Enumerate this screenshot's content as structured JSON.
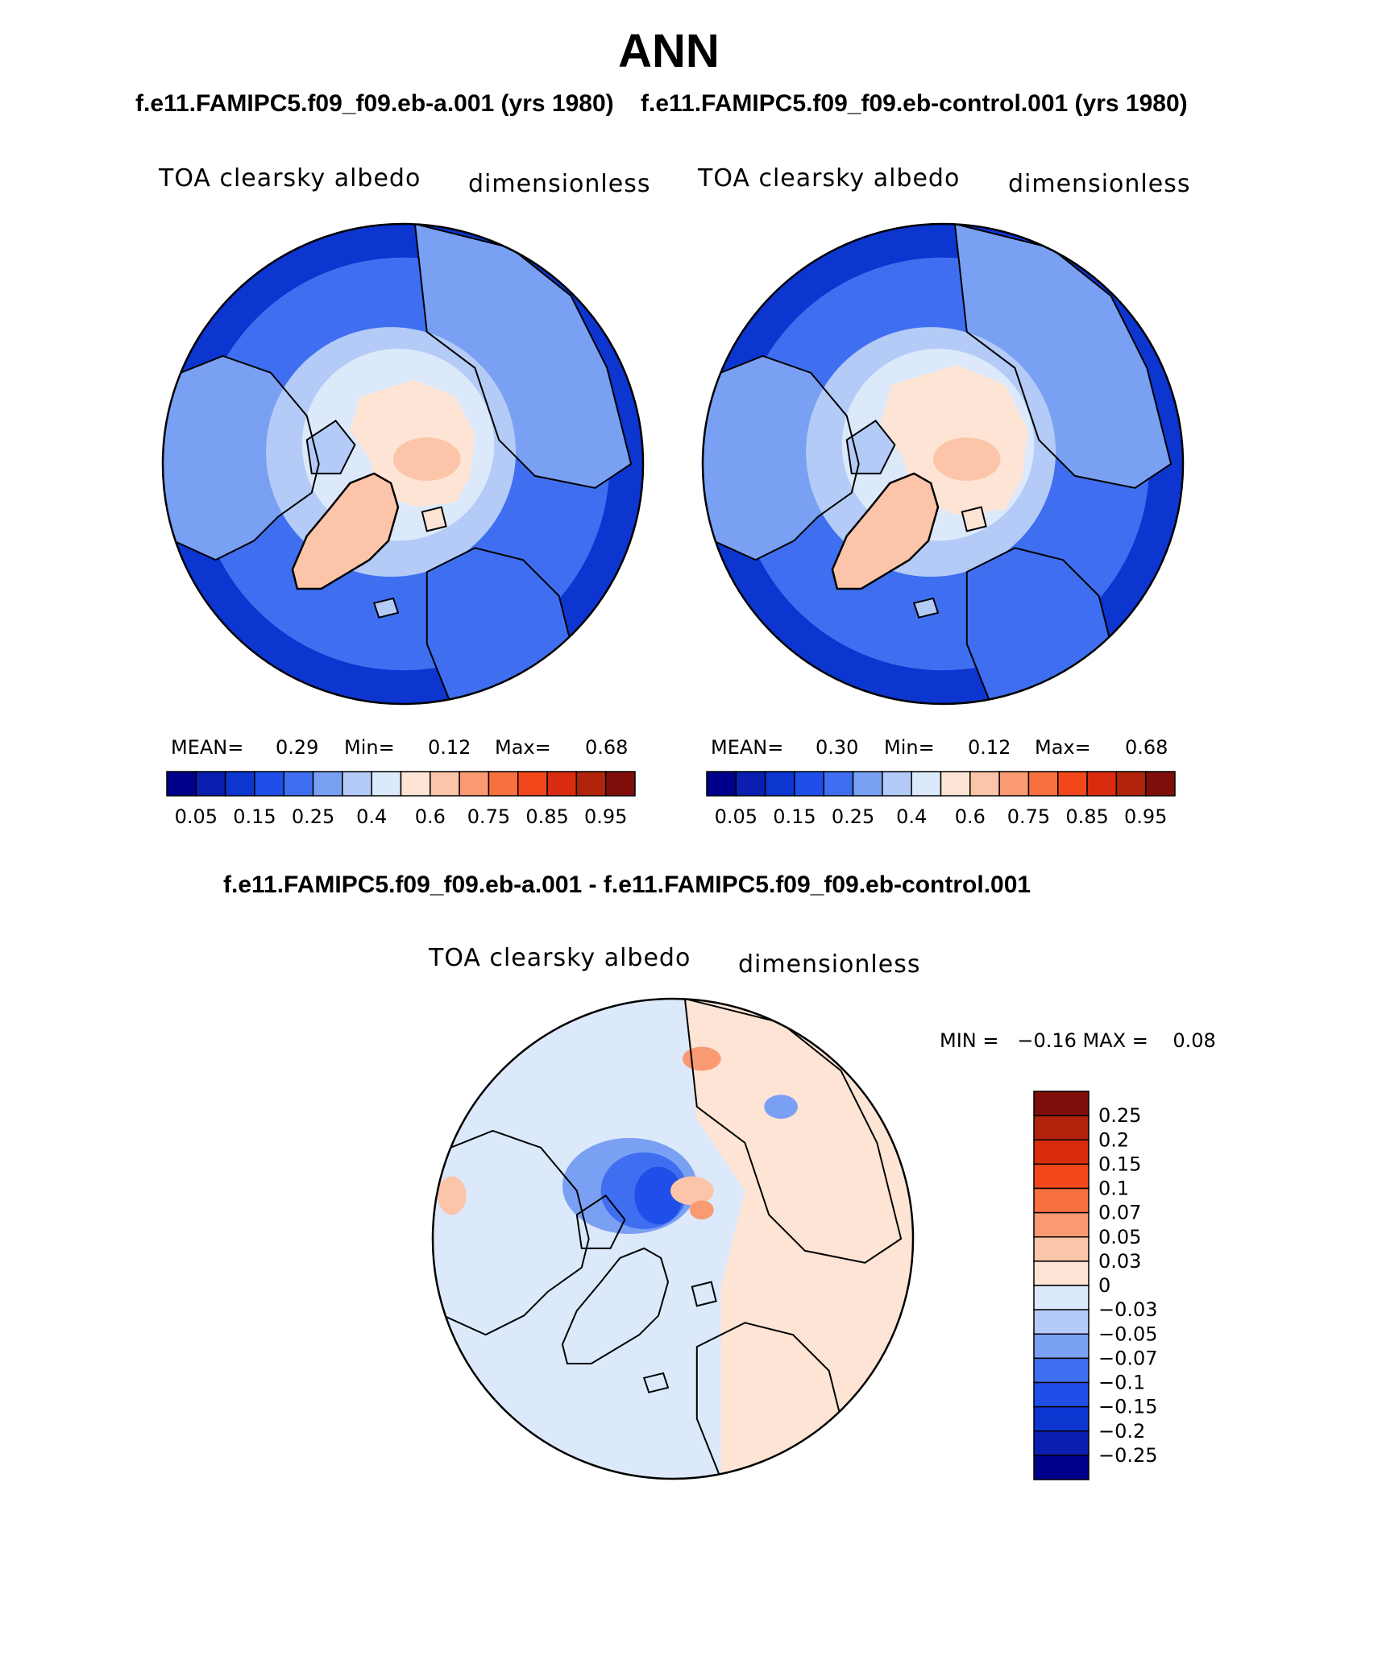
{
  "title": "ANN",
  "case_titles": {
    "left": "f.e11.FAMIPC5.f09_f09.eb-a.001 (yrs 1980)",
    "right": "f.e11.FAMIPC5.f09_f09.eb-control.001 (yrs 1980)",
    "diff": "f.e11.FAMIPC5.f09_f09.eb-a.001 - f.e11.FAMIPC5.f09_f09.eb-control.001"
  },
  "panels": {
    "left": {
      "variable": "TOA clearsky albedo",
      "units": "dimensionless",
      "stats": {
        "mean_label": "MEAN=",
        "mean": "0.29",
        "min_label": "Min=",
        "min": "0.12",
        "max_label": "Max=",
        "max": "0.68"
      }
    },
    "right": {
      "variable": "TOA clearsky albedo",
      "units": "dimensionless",
      "stats": {
        "mean_label": "MEAN=",
        "mean": "0.30",
        "min_label": "Min=",
        "min": "0.12",
        "max_label": "Max=",
        "max": "0.68"
      }
    },
    "diff": {
      "variable": "TOA clearsky albedo",
      "units": "dimensionless",
      "minmax": "MIN =   −0.16 MAX =    0.08"
    }
  },
  "colorbar_main": {
    "ticks": [
      "0.05",
      "0.15",
      "0.25",
      "0.4",
      "0.6",
      "0.75",
      "0.85",
      "0.95"
    ],
    "colors": [
      "#00008b",
      "#0a1fb0",
      "#0d35d0",
      "#1f4fe8",
      "#3f6ff0",
      "#7aa0f4",
      "#b4cbf7",
      "#dce9fb",
      "#fde4d4",
      "#fcc4a8",
      "#f99a72",
      "#f8703e",
      "#f2471b",
      "#d92b0e",
      "#b1240b",
      "#7f0d0a"
    ]
  },
  "colorbar_diff": {
    "levels": [
      "0.25",
      "0.2",
      "0.15",
      "0.1",
      "0.07",
      "0.05",
      "0.03",
      "0",
      "−0.03",
      "−0.05",
      "−0.07",
      "−0.1",
      "−0.15",
      "−0.2",
      "−0.25"
    ],
    "colors": [
      "#7f0d0a",
      "#b1240b",
      "#d92b0e",
      "#f2471b",
      "#f8703e",
      "#f99a72",
      "#fcc4a8",
      "#fde4d4",
      "#dce9fb",
      "#b4cbf7",
      "#7aa0f4",
      "#3f6ff0",
      "#1f4fe8",
      "#0d35d0",
      "#0a1fb0",
      "#00008b"
    ]
  },
  "map_colors": {
    "ocean_low": "#0d35d0",
    "ocean_mid": "#3f6ff0",
    "shelf": "#7aa0f4",
    "land_low": "#b4cbf7",
    "snow": "#dce9fb",
    "ice_cap": "#fde4d4",
    "ice_high": "#fcc4a8",
    "ice_peak": "#f99a72",
    "diff_zero_neg": "#dce9fb",
    "diff_zero_pos": "#fde4d4",
    "diff_neg_strong": "#1f4fe8",
    "diff_neg_mid": "#3f6ff0",
    "diff_neg_light": "#7aa0f4",
    "diff_pos_light": "#fcc4a8",
    "diff_pos_mid": "#f99a72"
  }
}
